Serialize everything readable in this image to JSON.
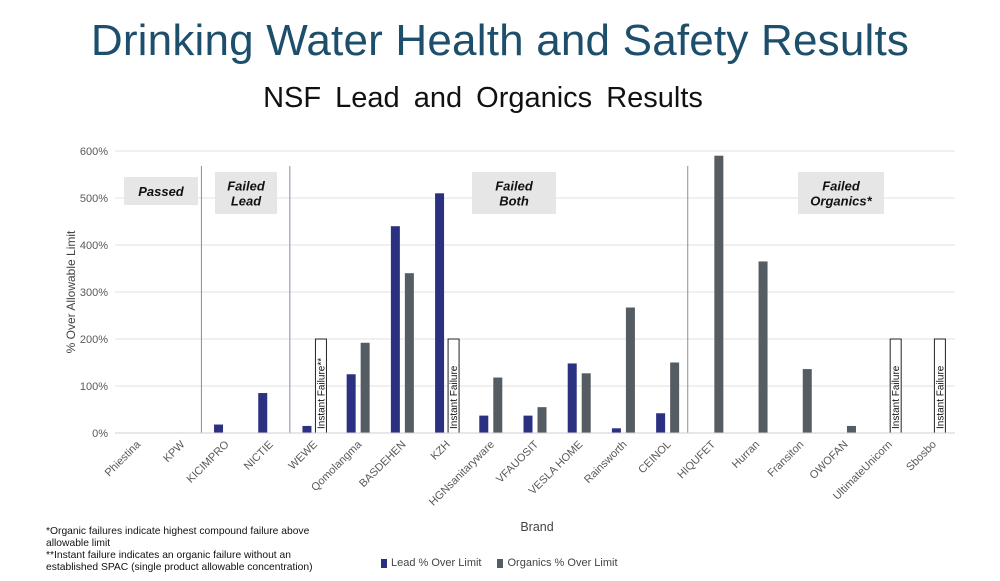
{
  "header": {
    "title": "Drinking Water Health and Safety Results",
    "subtitle": "NSF  Lead  and Organics Results"
  },
  "footnotes": {
    "line1": "*Organic failures indicate highest compound failure above allowable limit",
    "line2": "**Instant failure indicates an organic failure without an established SPAC (single product allowable concentration)"
  },
  "colors": {
    "lead": "#2b3180",
    "organics": "#555c62",
    "grid": "#e2e2e2",
    "group_box": "#e6e6e6",
    "divider": "#8a8aa8"
  },
  "chart_data": {
    "type": "bar",
    "xlabel": "Brand",
    "ylabel": "% Over Allowable Limit",
    "ylim": [
      0,
      600
    ],
    "ytick_labels": [
      "0%",
      "100%",
      "200%",
      "300%",
      "400%",
      "500%",
      "600%"
    ],
    "ytick_values": [
      0,
      100,
      200,
      300,
      400,
      500,
      600
    ],
    "grid": true,
    "legend_position": "bottom",
    "categories": [
      "Phiestina",
      "KPW",
      "KICIMPRO",
      "NICTIE",
      "WEWE",
      "Qomolangma",
      "BASDEHEN",
      "KZH",
      "HGNsanitaryware",
      "VFAUOSIT",
      "VESLA HOME",
      "Rainsworth",
      "CEINOL",
      "HIQUFET",
      "Hurran",
      "Fransiton",
      "OWOFAN",
      "UltimateUnicorn",
      "Sbosbo"
    ],
    "series": [
      {
        "name": "Lead % Over Limit",
        "values": [
          0,
          0,
          18,
          85,
          15,
          125,
          440,
          510,
          37,
          37,
          148,
          10,
          42,
          0,
          0,
          0,
          0,
          0,
          0
        ]
      },
      {
        "name": "Organics % Over Limit",
        "values": [
          0,
          0,
          0,
          0,
          0,
          192,
          340,
          0,
          118,
          55,
          127,
          267,
          150,
          590,
          365,
          136,
          15,
          0,
          0
        ]
      }
    ],
    "annotations": [
      {
        "category": "WEWE",
        "text": "Instant Failure**",
        "value": 200
      },
      {
        "category": "KZH",
        "text": "Instant Failure",
        "value": 200
      },
      {
        "category": "UltimateUnicorn",
        "text": "Instant Failure",
        "value": 200
      },
      {
        "category": "Sbosbo",
        "text": "Instant Failure",
        "value": 200
      }
    ],
    "groups": [
      {
        "name": "Passed",
        "lines": [
          "Passed"
        ],
        "from": "Phiestina",
        "to": "KPW"
      },
      {
        "name": "Failed Lead",
        "lines": [
          "Failed",
          "Lead"
        ],
        "from": "KICIMPRO",
        "to": "NICTIE"
      },
      {
        "name": "Failed Both",
        "lines": [
          "Failed",
          "Both"
        ],
        "from": "WEWE",
        "to": "CEINOL"
      },
      {
        "name": "Failed Organics*",
        "lines": [
          "Failed",
          "Organics*"
        ],
        "from": "HIQUFET",
        "to": "Sbosbo"
      }
    ]
  }
}
